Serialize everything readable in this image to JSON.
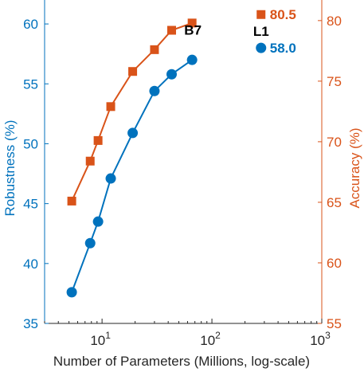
{
  "chart_data": {
    "type": "line",
    "xlabel": "Number of Parameters (Millions, log-scale)",
    "x_scale": "log",
    "xlim": [
      3,
      1000
    ],
    "x_ticks": [
      {
        "value": 10,
        "base": "10",
        "exp": "1"
      },
      {
        "value": 100,
        "base": "10",
        "exp": "2"
      },
      {
        "value": 1000,
        "base": "10",
        "exp": "3"
      }
    ],
    "left_axis": {
      "label": "Robustness (%)",
      "ylim": [
        35,
        62
      ],
      "ticks": [
        35,
        40,
        45,
        50,
        55,
        60
      ],
      "tick_labels": [
        "35",
        "40",
        "45",
        "50",
        "55",
        "60"
      ],
      "color": "#0072BD"
    },
    "right_axis": {
      "label": "Accuracy (%)",
      "ylim": [
        55,
        81.7
      ],
      "ticks": [
        55,
        60,
        65,
        70,
        75,
        80
      ],
      "tick_labels": [
        "55",
        "60",
        "65",
        "70",
        "75",
        "80"
      ],
      "color": "#D95319"
    },
    "series": [
      {
        "axis": "left",
        "marker": "circle",
        "color": "#0072BD",
        "x": [
          5.3,
          7.8,
          9.2,
          12,
          19,
          30,
          43,
          66
        ],
        "y": [
          37.6,
          41.7,
          43.5,
          47.1,
          50.9,
          54.4,
          55.8,
          57.0
        ]
      },
      {
        "axis": "right",
        "marker": "square",
        "color": "#D95319",
        "x": [
          5.3,
          7.8,
          9.2,
          12,
          19,
          30,
          43,
          66
        ],
        "y": [
          65.1,
          68.4,
          70.1,
          72.9,
          75.8,
          77.6,
          79.2,
          79.8
        ]
      }
    ],
    "highlight": {
      "x": 280,
      "robustness": 58.0,
      "accuracy": 80.5,
      "robustness_label": "58.0",
      "accuracy_label": "80.5",
      "name": "L1"
    },
    "annotations": [
      {
        "text": "B7",
        "x": 66,
        "y": 59.5,
        "axis": "left"
      }
    ],
    "grid": false,
    "legend": "none"
  }
}
